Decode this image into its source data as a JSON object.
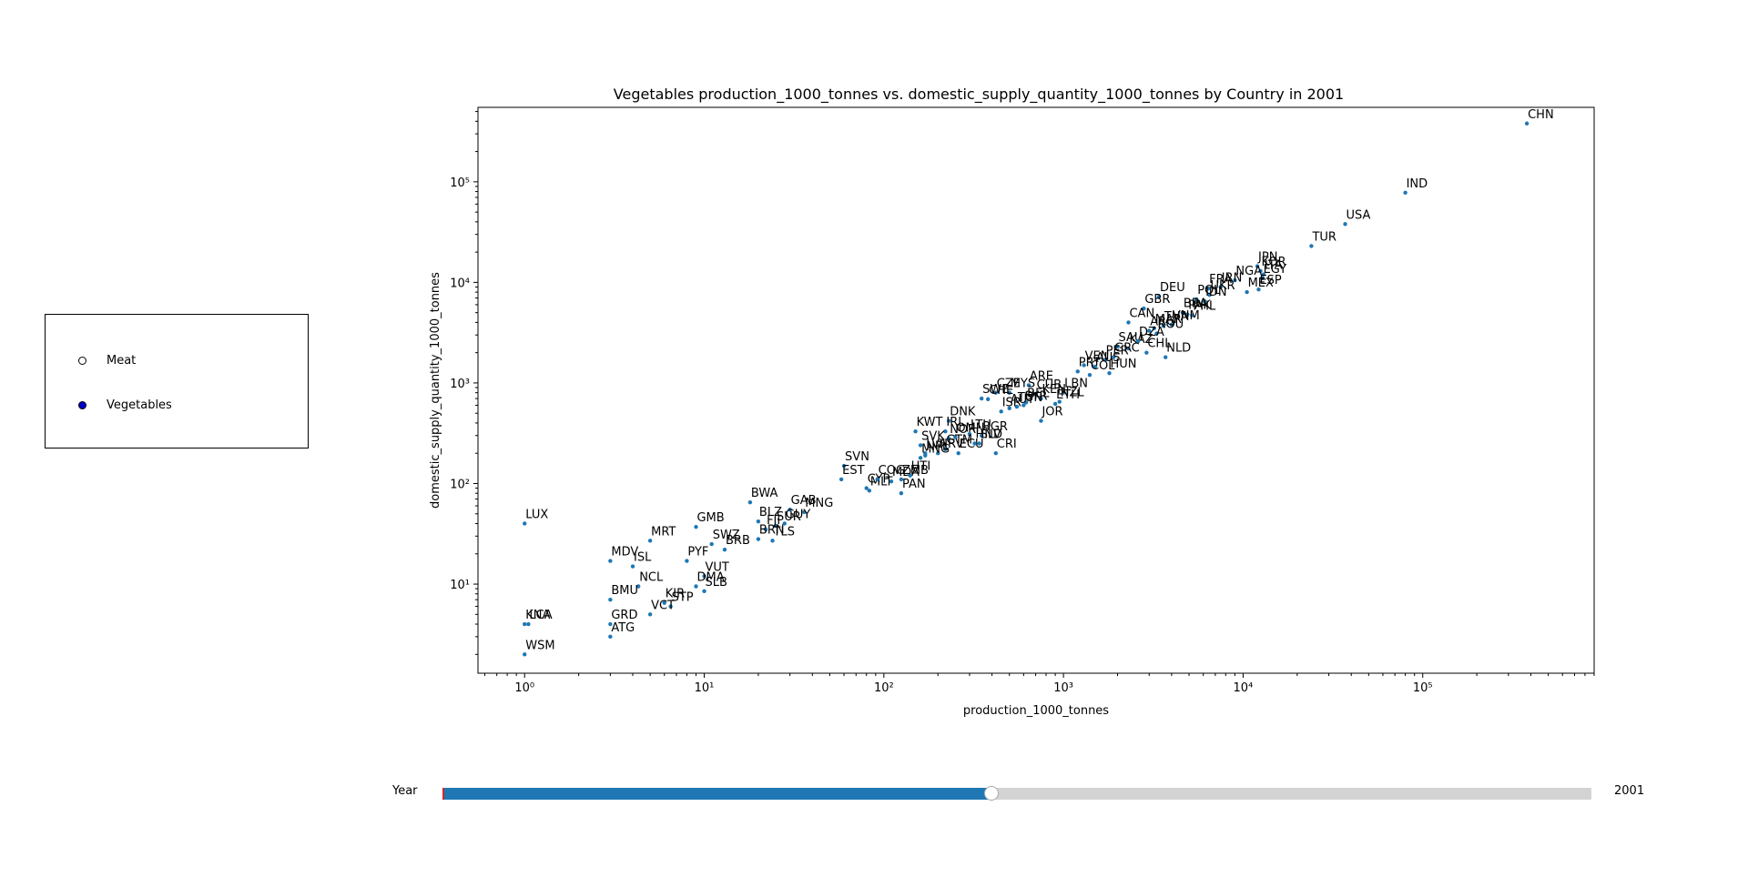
{
  "legend": {
    "items": [
      {
        "label": "Meat",
        "fill": "#ffffff",
        "selected": false
      },
      {
        "label": "Vegetables",
        "fill": "#0000cc",
        "selected": true
      }
    ]
  },
  "slider": {
    "label": "Year",
    "value": "2001",
    "fraction": 0.478,
    "fill_color": "#1f77b4",
    "track_color": "#d3d3d3",
    "start_marker_color": "#d62728"
  },
  "chart_data": {
    "type": "scatter",
    "title": "Vegetables production_1000_tonnes vs. domestic_supply_quantity_1000_tonnes by Country in 2001",
    "xlabel": "production_1000_tonnes",
    "ylabel": "domestic_supply_quantity_1000_tonnes",
    "xscale": "log",
    "yscale": "log",
    "xlim": [
      0.55,
      900000
    ],
    "ylim": [
      1.3,
      550000
    ],
    "x_ticks": [
      {
        "value": 1,
        "label": "10⁰"
      },
      {
        "value": 10,
        "label": "10¹"
      },
      {
        "value": 100,
        "label": "10²"
      },
      {
        "value": 1000,
        "label": "10³"
      },
      {
        "value": 10000,
        "label": "10⁴"
      },
      {
        "value": 100000,
        "label": "10⁵"
      }
    ],
    "y_ticks": [
      {
        "value": 10,
        "label": "10¹"
      },
      {
        "value": 100,
        "label": "10²"
      },
      {
        "value": 1000,
        "label": "10³"
      },
      {
        "value": 10000,
        "label": "10⁴"
      },
      {
        "value": 100000,
        "label": "10⁵"
      }
    ],
    "grid": false,
    "point_color": "#1f77b4",
    "points": [
      {
        "label": "CHN",
        "x": 380000,
        "y": 380000
      },
      {
        "label": "IND",
        "x": 80000,
        "y": 78000
      },
      {
        "label": "USA",
        "x": 37000,
        "y": 38000
      },
      {
        "label": "TUR",
        "x": 24000,
        "y": 23000
      },
      {
        "label": "JPN",
        "x": 12000,
        "y": 14500
      },
      {
        "label": "KOR",
        "x": 12500,
        "y": 13000
      },
      {
        "label": "ITA",
        "x": 13000,
        "y": 12000
      },
      {
        "label": "EGY",
        "x": 12800,
        "y": 11000
      },
      {
        "label": "ESP",
        "x": 12200,
        "y": 8500
      },
      {
        "label": "MEX",
        "x": 10500,
        "y": 8000
      },
      {
        "label": "NGA",
        "x": 9000,
        "y": 10500
      },
      {
        "label": "IRN",
        "x": 7500,
        "y": 9000
      },
      {
        "label": "FRA",
        "x": 6400,
        "y": 8700
      },
      {
        "label": "UKR",
        "x": 6500,
        "y": 7500
      },
      {
        "label": "POL",
        "x": 5500,
        "y": 6800
      },
      {
        "label": "IDN",
        "x": 6100,
        "y": 6500
      },
      {
        "label": "DEU",
        "x": 3400,
        "y": 7200
      },
      {
        "label": "GBR",
        "x": 2800,
        "y": 5500
      },
      {
        "label": "CAN",
        "x": 2300,
        "y": 4000
      },
      {
        "label": "BRA",
        "x": 4600,
        "y": 5000
      },
      {
        "label": "PAK",
        "x": 4900,
        "y": 4800
      },
      {
        "label": "PHL",
        "x": 5200,
        "y": 4700
      },
      {
        "label": "VNM",
        "x": 4000,
        "y": 3800
      },
      {
        "label": "THA",
        "x": 3600,
        "y": 3700
      },
      {
        "label": "MAR",
        "x": 3200,
        "y": 3500
      },
      {
        "label": "ARG",
        "x": 3000,
        "y": 3300
      },
      {
        "label": "ROU",
        "x": 3300,
        "y": 3100
      },
      {
        "label": "NLD",
        "x": 3700,
        "y": 1800
      },
      {
        "label": "CHL",
        "x": 2900,
        "y": 2000
      },
      {
        "label": "SAU",
        "x": 2000,
        "y": 2300
      },
      {
        "label": "KAZ",
        "x": 2300,
        "y": 2200
      },
      {
        "label": "DZA",
        "x": 2600,
        "y": 2600
      },
      {
        "label": "GRC",
        "x": 1900,
        "y": 1800
      },
      {
        "label": "PER",
        "x": 1700,
        "y": 1700
      },
      {
        "label": "VEN",
        "x": 1300,
        "y": 1500
      },
      {
        "label": "HUN",
        "x": 1800,
        "y": 1250
      },
      {
        "label": "PRT",
        "x": 1200,
        "y": 1300
      },
      {
        "label": "AUS",
        "x": 1500,
        "y": 1450
      },
      {
        "label": "COL",
        "x": 1400,
        "y": 1200
      },
      {
        "label": "ARE",
        "x": 640,
        "y": 950
      },
      {
        "label": "MYS",
        "x": 500,
        "y": 800
      },
      {
        "label": "CZE",
        "x": 420,
        "y": 800
      },
      {
        "label": "CUB",
        "x": 700,
        "y": 780
      },
      {
        "label": "LBN",
        "x": 1000,
        "y": 800
      },
      {
        "label": "KEN",
        "x": 750,
        "y": 700
      },
      {
        "label": "SWE",
        "x": 350,
        "y": 700
      },
      {
        "label": "CHE",
        "x": 380,
        "y": 690
      },
      {
        "label": "NZL",
        "x": 950,
        "y": 650
      },
      {
        "label": "ETH",
        "x": 900,
        "y": 620
      },
      {
        "label": "JOR",
        "x": 750,
        "y": 420
      },
      {
        "label": "SYR",
        "x": 600,
        "y": 600
      },
      {
        "label": "TUN",
        "x": 550,
        "y": 580
      },
      {
        "label": "BEL",
        "x": 620,
        "y": 640
      },
      {
        "label": "AUT",
        "x": 500,
        "y": 560
      },
      {
        "label": "ISR",
        "x": 450,
        "y": 520
      },
      {
        "label": "DNK",
        "x": 230,
        "y": 420
      },
      {
        "label": "KWT",
        "x": 150,
        "y": 330
      },
      {
        "label": "IRL",
        "x": 220,
        "y": 330
      },
      {
        "label": "NOR",
        "x": 230,
        "y": 280
      },
      {
        "label": "OMN",
        "x": 250,
        "y": 290
      },
      {
        "label": "LTU",
        "x": 300,
        "y": 310
      },
      {
        "label": "BGR",
        "x": 350,
        "y": 300
      },
      {
        "label": "SLV",
        "x": 340,
        "y": 250
      },
      {
        "label": "SVK",
        "x": 160,
        "y": 240
      },
      {
        "label": "LVA",
        "x": 170,
        "y": 200
      },
      {
        "label": "HRV",
        "x": 200,
        "y": 200
      },
      {
        "label": "GTM",
        "x": 220,
        "y": 220
      },
      {
        "label": "ECU",
        "x": 260,
        "y": 200
      },
      {
        "label": "HND",
        "x": 320,
        "y": 250
      },
      {
        "label": "CRI",
        "x": 420,
        "y": 200
      },
      {
        "label": "MNG",
        "x": 160,
        "y": 180
      },
      {
        "label": "NPL",
        "x": 170,
        "y": 190
      },
      {
        "label": "PAN",
        "x": 125,
        "y": 80
      },
      {
        "label": "SVN",
        "x": 60,
        "y": 150
      },
      {
        "label": "EST",
        "x": 58,
        "y": 110
      },
      {
        "label": "CYP",
        "x": 80,
        "y": 90
      },
      {
        "label": "MLT",
        "x": 83,
        "y": 85
      },
      {
        "label": "COG",
        "x": 92,
        "y": 110
      },
      {
        "label": "MDA",
        "x": 110,
        "y": 105
      },
      {
        "label": "HTI",
        "x": 140,
        "y": 120
      },
      {
        "label": "ZMB",
        "x": 125,
        "y": 110
      },
      {
        "label": "BWA",
        "x": 18,
        "y": 65
      },
      {
        "label": "GAB",
        "x": 30,
        "y": 55
      },
      {
        "label": "MNG2",
        "x": 36,
        "y": 52
      },
      {
        "label": "GUY",
        "x": 28,
        "y": 40
      },
      {
        "label": "SUR",
        "x": 25,
        "y": 38
      },
      {
        "label": "BLZ",
        "x": 20,
        "y": 42
      },
      {
        "label": "FJI",
        "x": 22,
        "y": 35
      },
      {
        "label": "GMB",
        "x": 9,
        "y": 37
      },
      {
        "label": "BRN",
        "x": 20,
        "y": 28
      },
      {
        "label": "TLS",
        "x": 24,
        "y": 27
      },
      {
        "label": "SWZ",
        "x": 11,
        "y": 25
      },
      {
        "label": "BRB",
        "x": 13,
        "y": 22
      },
      {
        "label": "PYF",
        "x": 8,
        "y": 17
      },
      {
        "label": "MRT",
        "x": 5,
        "y": 27
      },
      {
        "label": "LUX",
        "x": 1,
        "y": 40
      },
      {
        "label": "MDV",
        "x": 3,
        "y": 17
      },
      {
        "label": "ISL",
        "x": 4,
        "y": 15
      },
      {
        "label": "NCL",
        "x": 4.3,
        "y": 9.5
      },
      {
        "label": "VUT",
        "x": 10,
        "y": 12
      },
      {
        "label": "DMA",
        "x": 9,
        "y": 9.5
      },
      {
        "label": "SLB",
        "x": 10,
        "y": 8.5
      },
      {
        "label": "BMU",
        "x": 3,
        "y": 7
      },
      {
        "label": "KIR",
        "x": 6,
        "y": 6.5
      },
      {
        "label": "STP",
        "x": 6.5,
        "y": 6
      },
      {
        "label": "VCT",
        "x": 5,
        "y": 5
      },
      {
        "label": "KNA",
        "x": 1,
        "y": 4
      },
      {
        "label": "LCA",
        "x": 1.05,
        "y": 4
      },
      {
        "label": "GRD",
        "x": 3,
        "y": 4
      },
      {
        "label": "ATG",
        "x": 3,
        "y": 3
      },
      {
        "label": "WSM",
        "x": 1,
        "y": 2
      }
    ]
  }
}
